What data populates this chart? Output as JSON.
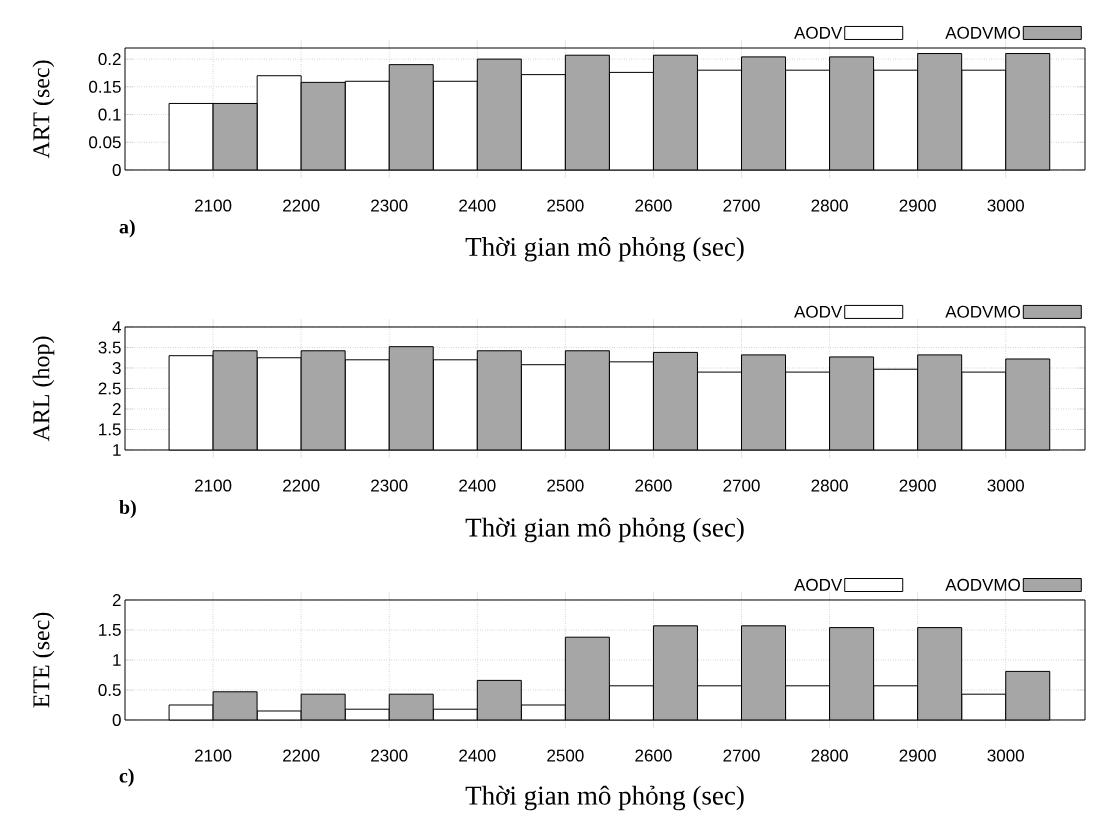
{
  "chart_data": [
    {
      "type": "bar",
      "xlabel": "Thời gian mô phỏng (sec)",
      "ylabel": "ART (sec)",
      "categories": [
        "2100",
        "2200",
        "2300",
        "2400",
        "2500",
        "2600",
        "2700",
        "2800",
        "2900",
        "3000"
      ],
      "series": [
        {
          "name": "AODV",
          "color": "#ffffff",
          "values": [
            0.12,
            0.17,
            0.16,
            0.16,
            0.172,
            0.176,
            0.18,
            0.18,
            0.18,
            0.18
          ]
        },
        {
          "name": "AODVMO",
          "color": "#a6a6a6",
          "values": [
            0.12,
            0.158,
            0.19,
            0.2,
            0.207,
            0.207,
            0.204,
            0.204,
            0.21,
            0.21
          ]
        }
      ],
      "ylim": [
        0,
        0.22
      ],
      "yticks": [
        0,
        0.05,
        0.1,
        0.15,
        0.2
      ],
      "grid": true,
      "legend": "top right",
      "annotations": [
        "a)"
      ]
    },
    {
      "type": "bar",
      "xlabel": "Thời gian mô phỏng (sec)",
      "ylabel": "ARL (hop)",
      "categories": [
        "2100",
        "2200",
        "2300",
        "2400",
        "2500",
        "2600",
        "2700",
        "2800",
        "2900",
        "3000"
      ],
      "series": [
        {
          "name": "AODV",
          "color": "#ffffff",
          "values": [
            3.3,
            3.25,
            3.2,
            3.2,
            3.08,
            3.15,
            2.9,
            2.9,
            2.97,
            2.9
          ]
        },
        {
          "name": "AODVMO",
          "color": "#a6a6a6",
          "values": [
            3.42,
            3.42,
            3.52,
            3.42,
            3.42,
            3.38,
            3.32,
            3.27,
            3.32,
            3.22
          ]
        }
      ],
      "ylim": [
        1,
        4
      ],
      "yticks": [
        1,
        1.5,
        2,
        2.5,
        3,
        3.5,
        4
      ],
      "grid": true,
      "legend": "top right",
      "annotations": [
        "b)"
      ]
    },
    {
      "type": "bar",
      "xlabel": "Thời gian mô phỏng (sec)",
      "ylabel": "ETE (sec)",
      "categories": [
        "2100",
        "2200",
        "2300",
        "2400",
        "2500",
        "2600",
        "2700",
        "2800",
        "2900",
        "3000"
      ],
      "series": [
        {
          "name": "AODV",
          "color": "#ffffff",
          "values": [
            0.25,
            0.15,
            0.18,
            0.18,
            0.25,
            0.57,
            0.57,
            0.57,
            0.57,
            0.43
          ]
        },
        {
          "name": "AODVMO",
          "color": "#a6a6a6",
          "values": [
            0.47,
            0.43,
            0.43,
            0.66,
            1.38,
            1.57,
            1.57,
            1.54,
            1.54,
            0.81
          ]
        }
      ],
      "ylim": [
        0,
        2
      ],
      "yticks": [
        0,
        0.5,
        1,
        1.5,
        2
      ],
      "grid": true,
      "legend": "top right",
      "annotations": [
        "c)"
      ]
    }
  ]
}
